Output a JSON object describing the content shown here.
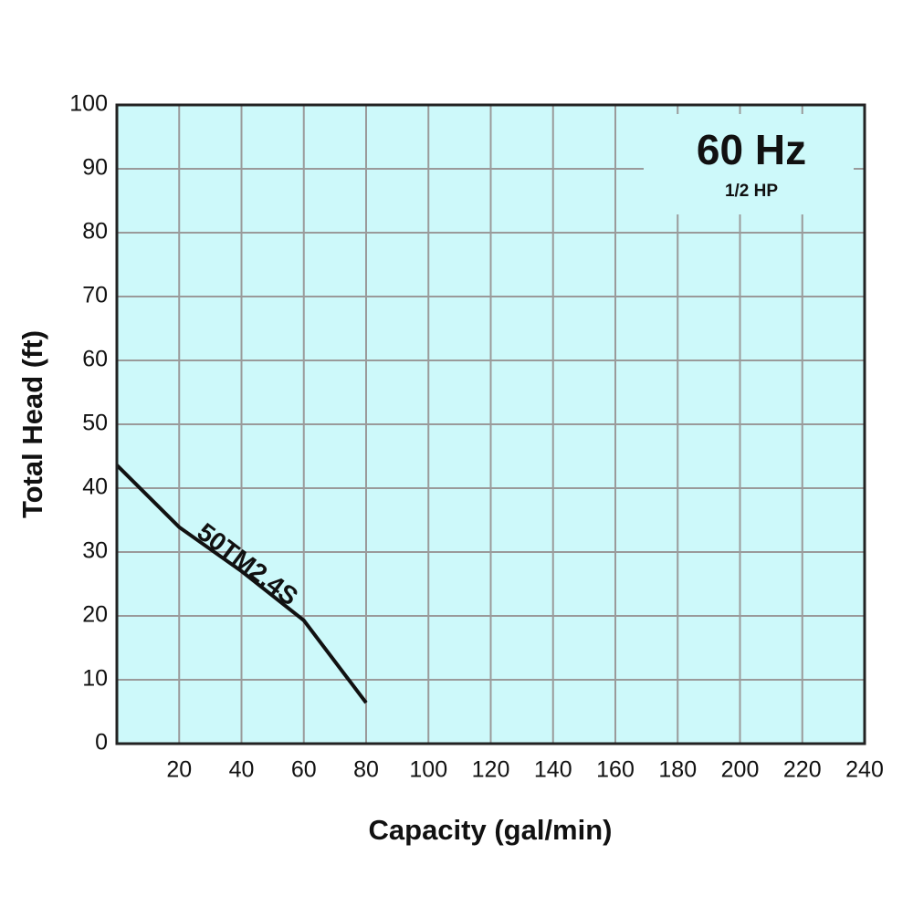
{
  "chart_data": {
    "type": "line",
    "title": "60 Hz",
    "subtitle": "1/2 HP",
    "x_label": "Capacity (gal/min)",
    "y_label": "Total Head (ft)",
    "x": [
      0,
      20,
      40,
      60,
      80
    ],
    "series": [
      {
        "name": "50TM2.4S",
        "color": "#111111",
        "values": [
          43.6,
          33.9,
          27,
          19.3,
          6.4
        ]
      }
    ],
    "xlim": [
      0,
      240
    ],
    "xticks": [
      20,
      40,
      60,
      80,
      100,
      120,
      140,
      160,
      180,
      200,
      220,
      240
    ],
    "ylim": [
      0,
      100
    ],
    "yticks": [
      0,
      10,
      20,
      30,
      40,
      50,
      60,
      70,
      80,
      90,
      100
    ],
    "grid": true,
    "background": "#cdf9fa"
  }
}
